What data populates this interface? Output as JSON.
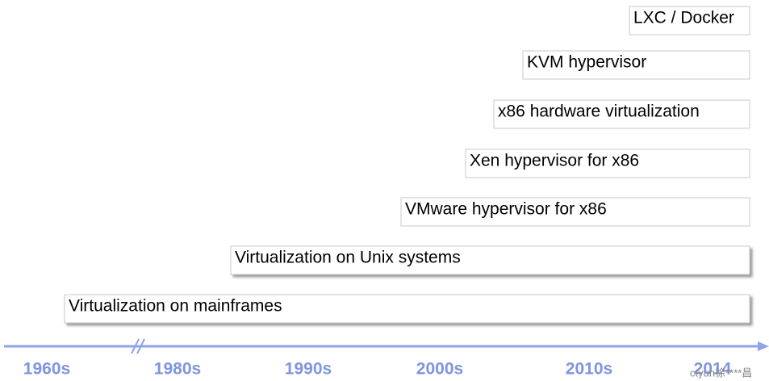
{
  "timeline": {
    "items": [
      {
        "label": "LXC / Docker"
      },
      {
        "label": "KVM hypervisor"
      },
      {
        "label": "x86 hardware virtualization"
      },
      {
        "label": "Xen hypervisor for x86"
      },
      {
        "label": "VMware hypervisor for x86"
      },
      {
        "label": "Virtualization on Unix systems"
      },
      {
        "label": "Virtualization on mainframes"
      }
    ],
    "eras": [
      "1960s",
      "1980s",
      "1990s",
      "2000s",
      "2010s",
      "2014"
    ],
    "watermark": "ctyun徐****昌"
  }
}
